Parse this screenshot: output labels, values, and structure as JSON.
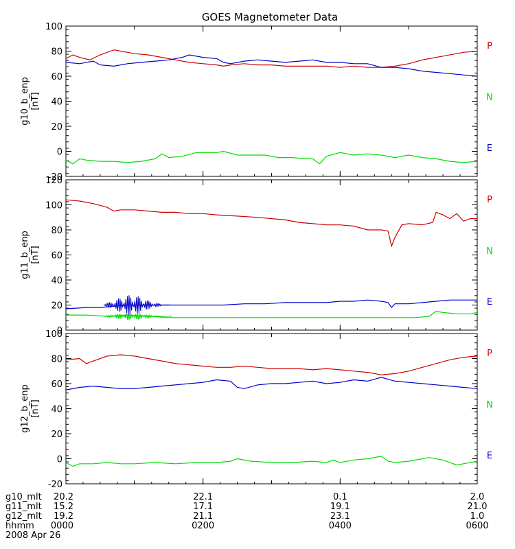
{
  "chart_data": {
    "type": "line",
    "title": "GOES Magnetometer Data",
    "x_ticks": [
      "0000",
      "0200",
      "0400",
      "0600"
    ],
    "footer": {
      "rows": [
        {
          "label": "g10_mlt",
          "values": [
            "20.2",
            "22.1",
            "0.1",
            "2.0"
          ]
        },
        {
          "label": "g11_mlt",
          "values": [
            "15.2",
            "17.1",
            "19.1",
            "21.0"
          ]
        },
        {
          "label": "g12_mlt",
          "values": [
            "19.2",
            "21.1",
            "23.1",
            "1.0"
          ]
        },
        {
          "label": "hhmm",
          "values": [
            "0000",
            "0200",
            "0400",
            "0600"
          ]
        }
      ],
      "date": "2008 Apr 26"
    },
    "colors": {
      "P": "#cc0000",
      "N": "#00dd00",
      "E": "#0000cc"
    },
    "panels": [
      {
        "ylabel": "g10_b_enp",
        "yunit": "[nT]",
        "ylim": [
          -20,
          100
        ],
        "yticks": [
          "-20",
          "0",
          "20",
          "40",
          "60",
          "80",
          "100"
        ],
        "legend": [
          "P",
          "N",
          "E"
        ],
        "series": [
          {
            "name": "P",
            "x": [
              0,
              0.1,
              0.2,
              0.35,
              0.5,
              0.7,
              0.8,
              0.9,
              1.0,
              1.2,
              1.4,
              1.6,
              1.8,
              2.0,
              2.2,
              2.3,
              2.4,
              2.6,
              2.8,
              3.0,
              3.2,
              3.5,
              3.8,
              4.0,
              4.2,
              4.4,
              4.6,
              4.8,
              5.0,
              5.2,
              5.5,
              5.8,
              6.0
            ],
            "y": [
              74,
              77,
              75,
              73,
              77,
              81,
              80,
              79,
              78,
              77,
              75,
              73,
              71,
              70,
              69,
              68,
              69,
              70,
              69,
              69,
              68,
              68,
              68,
              67,
              68,
              67,
              67,
              68,
              70,
              73,
              76,
              79,
              80
            ]
          },
          {
            "name": "N",
            "x": [
              0,
              0.1,
              0.2,
              0.3,
              0.5,
              0.7,
              0.9,
              1.1,
              1.3,
              1.4,
              1.5,
              1.7,
              1.9,
              2.1,
              2.2,
              2.3,
              2.5,
              2.7,
              2.9,
              3.1,
              3.3,
              3.5,
              3.6,
              3.7,
              3.8,
              4.0,
              4.2,
              4.4,
              4.6,
              4.8,
              5.0,
              5.2,
              5.4,
              5.6,
              5.8,
              6.0
            ],
            "y": [
              -7,
              -10,
              -6,
              -7,
              -8,
              -8,
              -9,
              -8,
              -6,
              -2,
              -5,
              -4,
              -1,
              -1,
              -1,
              0,
              -3,
              -3,
              -3,
              -5,
              -5,
              -6,
              -6,
              -10,
              -4,
              -1,
              -3,
              -2,
              -3,
              -5,
              -3,
              -5,
              -6,
              -8,
              -9,
              -8
            ]
          },
          {
            "name": "E",
            "x": [
              0,
              0.2,
              0.4,
              0.5,
              0.7,
              0.9,
              1.1,
              1.3,
              1.5,
              1.7,
              1.8,
              2.0,
              2.2,
              2.3,
              2.4,
              2.6,
              2.8,
              3.0,
              3.2,
              3.4,
              3.6,
              3.8,
              4.0,
              4.2,
              4.4,
              4.6,
              4.8,
              5.0,
              5.2,
              5.4,
              5.6,
              5.8,
              6.0
            ],
            "y": [
              71,
              70,
              72,
              69,
              68,
              70,
              71,
              72,
              73,
              75,
              77,
              75,
              74,
              71,
              70,
              72,
              73,
              72,
              71,
              72,
              73,
              71,
              71,
              70,
              70,
              67,
              67,
              66,
              64,
              63,
              62,
              61,
              60
            ]
          }
        ]
      },
      {
        "ylabel": "g11_b_enp",
        "yunit": "[nT]",
        "ylim": [
          0,
          120
        ],
        "yticks": [
          "0",
          "20",
          "40",
          "60",
          "80",
          "100",
          "120"
        ],
        "legend": [
          "P",
          "N",
          "E"
        ],
        "series": [
          {
            "name": "P",
            "x": [
              0,
              0.2,
              0.4,
              0.6,
              0.7,
              0.8,
              1.0,
              1.2,
              1.4,
              1.6,
              1.8,
              2.0,
              2.2,
              2.5,
              2.8,
              3.0,
              3.2,
              3.4,
              3.6,
              3.8,
              4.0,
              4.2,
              4.4,
              4.6,
              4.7,
              4.75,
              4.8,
              4.9,
              5.0,
              5.2,
              5.35,
              5.4,
              5.5,
              5.6,
              5.7,
              5.8,
              5.9,
              6.0
            ],
            "y": [
              104,
              103,
              101,
              98,
              95,
              96,
              96,
              95,
              94,
              94,
              93,
              93,
              92,
              91,
              90,
              89,
              88,
              86,
              85,
              84,
              84,
              83,
              80,
              80,
              79,
              67,
              74,
              84,
              85,
              84,
              86,
              94,
              92,
              89,
              93,
              87,
              89,
              89
            ]
          },
          {
            "name": "N",
            "x": [
              0,
              0.3,
              0.6,
              0.9,
              1.2,
              1.5,
              1.8,
              2.1,
              2.4,
              2.7,
              3.0,
              3.3,
              3.6,
              3.9,
              4.2,
              4.5,
              4.8,
              5.1,
              5.3,
              5.4,
              5.5,
              5.7,
              5.9,
              6.0
            ],
            "y": [
              12,
              12,
              11,
              12,
              11,
              10,
              10,
              10,
              10,
              10,
              10,
              10,
              10,
              10,
              10,
              10,
              10,
              10,
              11,
              15,
              14,
              13,
              13,
              14
            ]
          },
          {
            "name": "E",
            "x": [
              0,
              0.3,
              0.5,
              0.7,
              0.9,
              1.1,
              1.3,
              1.5,
              1.7,
              2.0,
              2.3,
              2.6,
              2.9,
              3.2,
              3.5,
              3.8,
              4.0,
              4.2,
              4.4,
              4.6,
              4.7,
              4.75,
              4.8,
              5.0,
              5.2,
              5.4,
              5.6,
              5.8,
              6.0
            ],
            "y": [
              17,
              18,
              18,
              19,
              20,
              20,
              20,
              20,
              20,
              20,
              20,
              21,
              21,
              22,
              22,
              22,
              23,
              23,
              24,
              23,
              22,
              18,
              21,
              21,
              22,
              23,
              24,
              24,
              24
            ]
          }
        ]
      },
      {
        "ylabel": "g12_b_enp",
        "yunit": "[nT]",
        "ylim": [
          -20,
          100
        ],
        "yticks": [
          "-20",
          "0",
          "20",
          "40",
          "60",
          "80",
          "100"
        ],
        "legend": [
          "P",
          "N",
          "E"
        ],
        "series": [
          {
            "name": "P",
            "x": [
              0,
              0.2,
              0.3,
              0.4,
              0.6,
              0.8,
              1.0,
              1.2,
              1.4,
              1.6,
              1.8,
              2.0,
              2.2,
              2.4,
              2.6,
              2.8,
              3.0,
              3.2,
              3.4,
              3.6,
              3.8,
              4.0,
              4.2,
              4.4,
              4.6,
              4.8,
              5.0,
              5.2,
              5.4,
              5.6,
              5.8,
              6.0
            ],
            "y": [
              79,
              80,
              76,
              78,
              82,
              83,
              82,
              80,
              78,
              76,
              75,
              74,
              73,
              73,
              74,
              73,
              72,
              72,
              72,
              71,
              72,
              71,
              70,
              69,
              67,
              68,
              70,
              73,
              76,
              79,
              81,
              82
            ]
          },
          {
            "name": "N",
            "x": [
              0,
              0.1,
              0.2,
              0.4,
              0.6,
              0.8,
              1.0,
              1.3,
              1.6,
              1.9,
              2.2,
              2.4,
              2.5,
              2.7,
              3.0,
              3.3,
              3.6,
              3.8,
              3.9,
              4.0,
              4.2,
              4.4,
              4.6,
              4.7,
              4.8,
              5.0,
              5.2,
              5.3,
              5.5,
              5.7,
              5.8,
              6.0
            ],
            "y": [
              -3,
              -6,
              -4,
              -4,
              -3,
              -4,
              -4,
              -3,
              -4,
              -3,
              -3,
              -2,
              0,
              -2,
              -3,
              -3,
              -2,
              -3,
              -1,
              -3,
              -1,
              0,
              2,
              -2,
              -3,
              -2,
              0,
              1,
              -1,
              -5,
              -4,
              -2
            ]
          },
          {
            "name": "E",
            "x": [
              0,
              0.2,
              0.4,
              0.6,
              0.8,
              1.0,
              1.2,
              1.4,
              1.6,
              1.8,
              2.0,
              2.2,
              2.4,
              2.5,
              2.6,
              2.8,
              3.0,
              3.2,
              3.4,
              3.6,
              3.8,
              4.0,
              4.2,
              4.4,
              4.6,
              4.8,
              5.0,
              5.2,
              5.4,
              5.6,
              5.8,
              6.0
            ],
            "y": [
              55,
              57,
              58,
              57,
              56,
              56,
              57,
              58,
              59,
              60,
              61,
              63,
              62,
              57,
              56,
              59,
              60,
              60,
              61,
              62,
              60,
              61,
              63,
              62,
              65,
              62,
              61,
              60,
              59,
              58,
              57,
              56
            ]
          }
        ]
      }
    ]
  }
}
